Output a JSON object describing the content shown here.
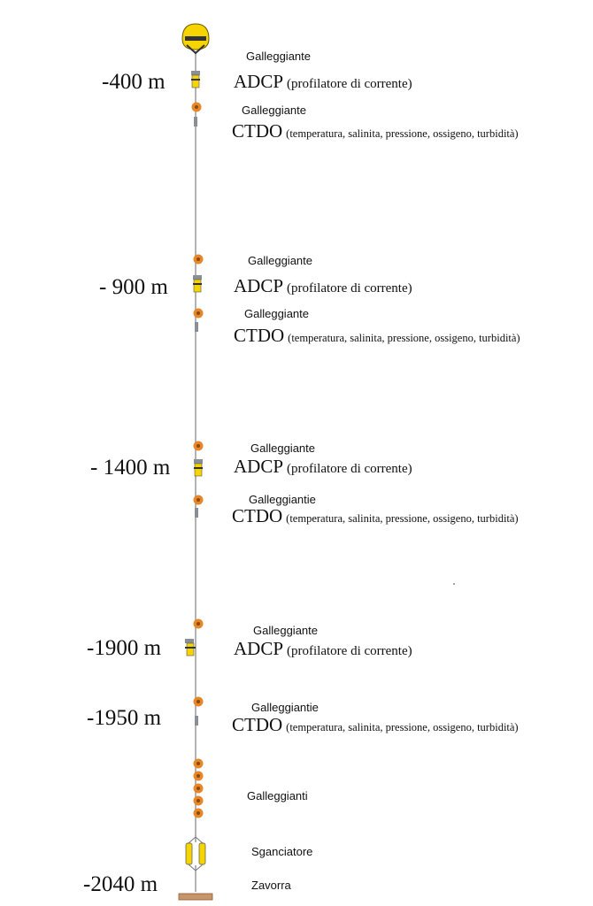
{
  "depths": [
    "-400 m",
    "- 900 m",
    "- 1400 m",
    "-1900 m",
    "-1950 m",
    "-2040 m"
  ],
  "floats": {
    "f1": "Galleggiante",
    "f2": "Galleggiante",
    "f3": "Galleggiante",
    "f4": "Galleggiante",
    "f5": "Galleggiante",
    "f6": "Galleggiantie",
    "f7": "Galleggiante",
    "f8": "Galleggiantie",
    "f9": "Galleggianti"
  },
  "instruments": {
    "adcp_name": "ADCP",
    "adcp_desc": "(profilatore di corrente)",
    "ctdo_name": "CTDO",
    "ctdo_desc": "(temperatura, salinita, pressione, ossigeno, turbidità)"
  },
  "bottom": {
    "release": "Sganciatore",
    "anchor": "Zavorra"
  },
  "colors": {
    "buoy": "#f5d400",
    "float": "#e8862a",
    "cable": "#9a9a9a",
    "anchor": "#c8956a",
    "instrument": "#8a8f96"
  }
}
